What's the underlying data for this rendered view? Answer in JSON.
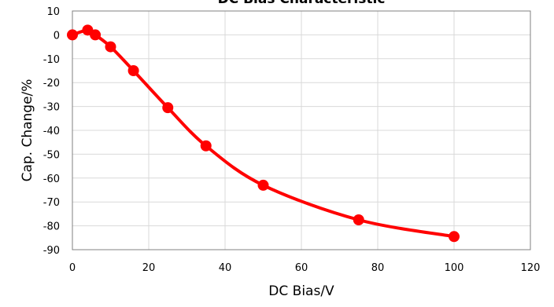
{
  "chart_data": {
    "type": "scatter",
    "title": "DC Bias Characteristic",
    "xlabel": "DC Bias/V",
    "ylabel": "Cap. Change/%",
    "xlim": [
      0,
      120
    ],
    "ylim": [
      -90,
      10
    ],
    "xticks": [
      0,
      20,
      40,
      60,
      80,
      100,
      120
    ],
    "yticks": [
      10,
      0,
      -10,
      -20,
      -30,
      -40,
      -50,
      -60,
      -70,
      -80,
      -90
    ],
    "grid": true,
    "legend": "none",
    "smooth_line": true,
    "series": [
      {
        "color": "#ff0000",
        "points": [
          {
            "x": 0,
            "y": 0
          },
          {
            "x": 4,
            "y": 2
          },
          {
            "x": 6,
            "y": 0
          },
          {
            "x": 10,
            "y": -5
          },
          {
            "x": 16,
            "y": -15
          },
          {
            "x": 25,
            "y": -30.5
          },
          {
            "x": 35,
            "y": -46.5
          },
          {
            "x": 50,
            "y": -63
          },
          {
            "x": 75,
            "y": -77.5
          },
          {
            "x": 100,
            "y": -84.5
          }
        ]
      }
    ]
  }
}
